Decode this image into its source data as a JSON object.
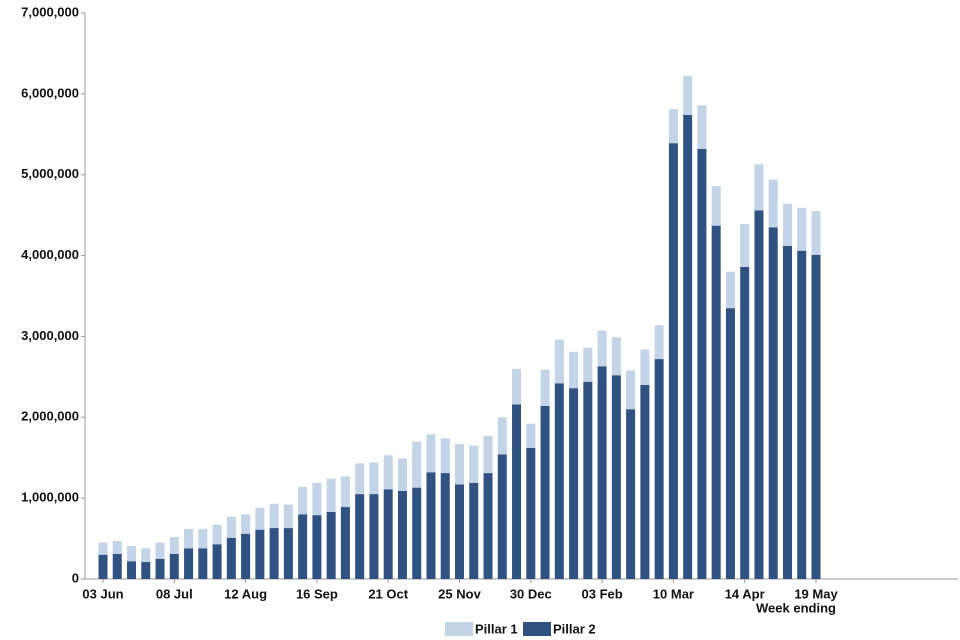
{
  "chart_data": {
    "type": "stacked_bar",
    "x_label": "Week ending",
    "categories": [
      "03 Jun",
      null,
      null,
      null,
      null,
      "08 Jul",
      null,
      null,
      null,
      null,
      "12 Aug",
      null,
      null,
      null,
      null,
      "16 Sep",
      null,
      null,
      null,
      null,
      "21 Oct",
      null,
      null,
      null,
      null,
      "25 Nov",
      null,
      null,
      null,
      null,
      "30 Dec",
      null,
      null,
      null,
      null,
      "03 Feb",
      null,
      null,
      null,
      null,
      "10 Mar",
      null,
      null,
      null,
      null,
      "14 Apr",
      null,
      null,
      null,
      null,
      "19 May"
    ],
    "series": [
      {
        "name": "Pillar 2",
        "color": "#2f5283",
        "values": [
          300000,
          310000,
          220000,
          210000,
          250000,
          310000,
          380000,
          380000,
          430000,
          510000,
          560000,
          610000,
          630000,
          630000,
          800000,
          790000,
          830000,
          890000,
          1050000,
          1050000,
          1110000,
          1090000,
          1130000,
          1320000,
          1310000,
          1170000,
          1190000,
          1310000,
          1540000,
          2160000,
          1620000,
          2140000,
          2420000,
          2360000,
          2440000,
          2630000,
          2520000,
          2100000,
          2400000,
          2720000,
          5390000,
          5740000,
          5320000,
          4370000,
          3350000,
          3860000,
          4560000,
          4350000,
          4120000,
          4060000,
          4010000
        ]
      },
      {
        "name": "Pillar 1",
        "color": "#c3d3e8",
        "values": [
          150000,
          160000,
          190000,
          170000,
          200000,
          210000,
          240000,
          240000,
          240000,
          260000,
          240000,
          270000,
          300000,
          290000,
          340000,
          400000,
          410000,
          380000,
          380000,
          390000,
          420000,
          400000,
          570000,
          470000,
          430000,
          500000,
          460000,
          460000,
          460000,
          440000,
          300000,
          450000,
          540000,
          450000,
          420000,
          440000,
          470000,
          480000,
          440000,
          420000,
          420000,
          480000,
          540000,
          490000,
          450000,
          530000,
          570000,
          590000,
          520000,
          530000,
          540000
        ]
      }
    ],
    "legend_order": [
      "Pillar 1",
      "Pillar 2"
    ],
    "ylim": [
      0,
      7000000
    ],
    "yticks": [
      0,
      {
        "value": 1000000,
        "label": "1,000,000"
      },
      {
        "value": 2000000,
        "label": "2,000,000"
      },
      {
        "value": 3000000,
        "label": "3,000,000"
      },
      {
        "value": 4000000,
        "label": "4,000,000"
      },
      {
        "value": 5000000,
        "label": "5,000,000"
      },
      {
        "value": 6000000,
        "label": "6,000,000"
      },
      {
        "value": 7000000,
        "label": "7,000,000"
      }
    ],
    "grid": false,
    "legend": "bottom"
  }
}
